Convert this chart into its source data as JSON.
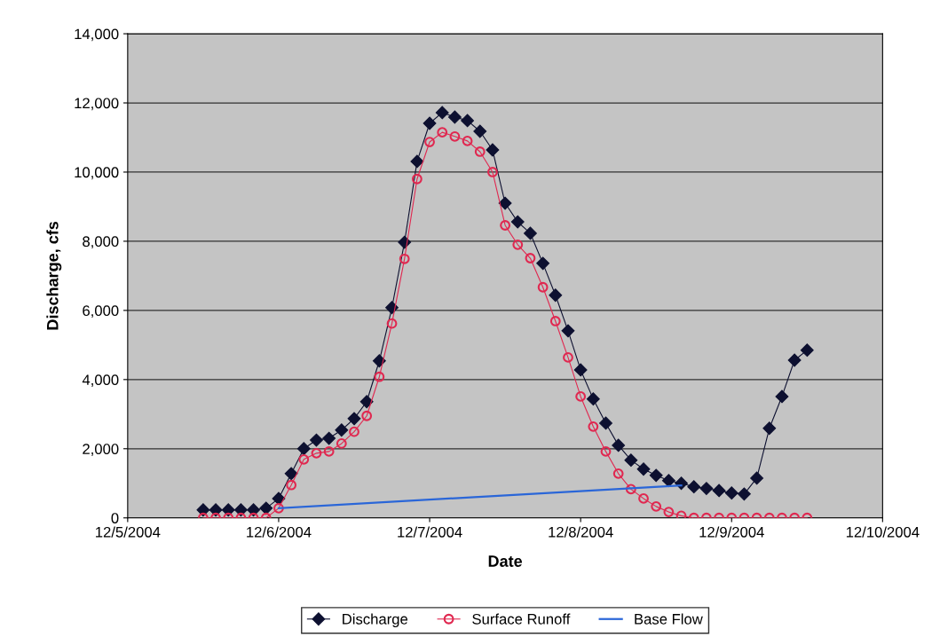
{
  "chart_data": {
    "type": "line",
    "xlabel": "Date",
    "ylabel": "Discharge, cfs",
    "xlim": [
      "2004-12-05",
      "2004-12-10"
    ],
    "xticks": [
      {
        "value": "2004-12-05",
        "label": "12/5/2004"
      },
      {
        "value": "2004-12-06",
        "label": "12/6/2004"
      },
      {
        "value": "2004-12-07",
        "label": "12/7/2004"
      },
      {
        "value": "2004-12-08",
        "label": "12/8/2004"
      },
      {
        "value": "2004-12-09",
        "label": "12/9/2004"
      },
      {
        "value": "2004-12-10",
        "label": "12/10/2004"
      }
    ],
    "ylim": [
      0,
      14000
    ],
    "yticks": [
      {
        "value": 0,
        "label": "0"
      },
      {
        "value": 2000,
        "label": "2,000"
      },
      {
        "value": 4000,
        "label": "4,000"
      },
      {
        "value": 6000,
        "label": "6,000"
      },
      {
        "value": 8000,
        "label": "8,000"
      },
      {
        "value": 10000,
        "label": "10,000"
      },
      {
        "value": 12000,
        "label": "12,000"
      },
      {
        "value": 14000,
        "label": "14,000"
      }
    ],
    "grid": "y",
    "legend": "bottom",
    "series": [
      {
        "name": "Discharge",
        "color": "#0d1030",
        "marker": "diamond",
        "line_style": "solid",
        "x": [
          "2004-12-05T12:00",
          "2004-12-05T14:00",
          "2004-12-05T16:00",
          "2004-12-05T18:00",
          "2004-12-05T20:00",
          "2004-12-05T22:00",
          "2004-12-06T00:00",
          "2004-12-06T02:00",
          "2004-12-06T04:00",
          "2004-12-06T06:00",
          "2004-12-06T08:00",
          "2004-12-06T10:00",
          "2004-12-06T12:00",
          "2004-12-06T14:00",
          "2004-12-06T16:00",
          "2004-12-06T18:00",
          "2004-12-06T20:00",
          "2004-12-06T22:00",
          "2004-12-07T00:00",
          "2004-12-07T02:00",
          "2004-12-07T04:00",
          "2004-12-07T06:00",
          "2004-12-07T08:00",
          "2004-12-07T10:00",
          "2004-12-07T12:00",
          "2004-12-07T14:00",
          "2004-12-07T16:00",
          "2004-12-07T18:00",
          "2004-12-07T20:00",
          "2004-12-07T22:00",
          "2004-12-08T00:00",
          "2004-12-08T02:00",
          "2004-12-08T04:00",
          "2004-12-08T06:00",
          "2004-12-08T08:00",
          "2004-12-08T10:00",
          "2004-12-08T12:00",
          "2004-12-08T14:00",
          "2004-12-08T16:00",
          "2004-12-08T18:00",
          "2004-12-08T20:00",
          "2004-12-08T22:00",
          "2004-12-09T00:00",
          "2004-12-09T02:00",
          "2004-12-09T04:00",
          "2004-12-09T06:00",
          "2004-12-09T08:00",
          "2004-12-09T10:00",
          "2004-12-09T12:00"
        ],
        "values": [
          230,
          230,
          230,
          230,
          230,
          280,
          560,
          1280,
          2000,
          2250,
          2300,
          2540,
          2870,
          3360,
          4540,
          6080,
          7970,
          10310,
          11410,
          11720,
          11590,
          11490,
          11180,
          10640,
          9100,
          8560,
          8230,
          7360,
          6440,
          5410,
          4280,
          3440,
          2740,
          2100,
          1670,
          1410,
          1230,
          1080,
          1000,
          900,
          850,
          790,
          720,
          690,
          1150,
          2590,
          3510,
          4560,
          4850
        ]
      },
      {
        "name": "Surface Runoff",
        "color": "#e02850",
        "marker": "circle",
        "line_style": "solid",
        "x": [
          "2004-12-05T12:00",
          "2004-12-05T14:00",
          "2004-12-05T16:00",
          "2004-12-05T18:00",
          "2004-12-05T20:00",
          "2004-12-05T22:00",
          "2004-12-06T00:00",
          "2004-12-06T02:00",
          "2004-12-06T04:00",
          "2004-12-06T06:00",
          "2004-12-06T08:00",
          "2004-12-06T10:00",
          "2004-12-06T12:00",
          "2004-12-06T14:00",
          "2004-12-06T16:00",
          "2004-12-06T18:00",
          "2004-12-06T20:00",
          "2004-12-06T22:00",
          "2004-12-07T00:00",
          "2004-12-07T02:00",
          "2004-12-07T04:00",
          "2004-12-07T06:00",
          "2004-12-07T08:00",
          "2004-12-07T10:00",
          "2004-12-07T12:00",
          "2004-12-07T14:00",
          "2004-12-07T16:00",
          "2004-12-07T18:00",
          "2004-12-07T20:00",
          "2004-12-07T22:00",
          "2004-12-08T00:00",
          "2004-12-08T02:00",
          "2004-12-08T04:00",
          "2004-12-08T06:00",
          "2004-12-08T08:00",
          "2004-12-08T10:00",
          "2004-12-08T12:00",
          "2004-12-08T14:00",
          "2004-12-08T16:00",
          "2004-12-08T18:00",
          "2004-12-08T20:00",
          "2004-12-08T22:00",
          "2004-12-09T00:00",
          "2004-12-09T02:00",
          "2004-12-09T04:00",
          "2004-12-09T06:00",
          "2004-12-09T08:00",
          "2004-12-09T10:00",
          "2004-12-09T12:00"
        ],
        "values": [
          0,
          0,
          0,
          0,
          0,
          0,
          280,
          950,
          1690,
          1870,
          1920,
          2150,
          2490,
          2950,
          4080,
          5620,
          7490,
          9800,
          10870,
          11150,
          11030,
          10900,
          10590,
          10000,
          8460,
          7900,
          7510,
          6670,
          5690,
          4640,
          3510,
          2640,
          1920,
          1280,
          830,
          560,
          330,
          170,
          60,
          0,
          0,
          0,
          0,
          0,
          0,
          0,
          0,
          0,
          0
        ]
      },
      {
        "name": "Base Flow",
        "color": "#2a66d8",
        "marker": "none",
        "line_style": "solid",
        "x": [
          "2004-12-06T00:00",
          "2004-12-08T16:00"
        ],
        "values": [
          280,
          940
        ]
      }
    ]
  }
}
